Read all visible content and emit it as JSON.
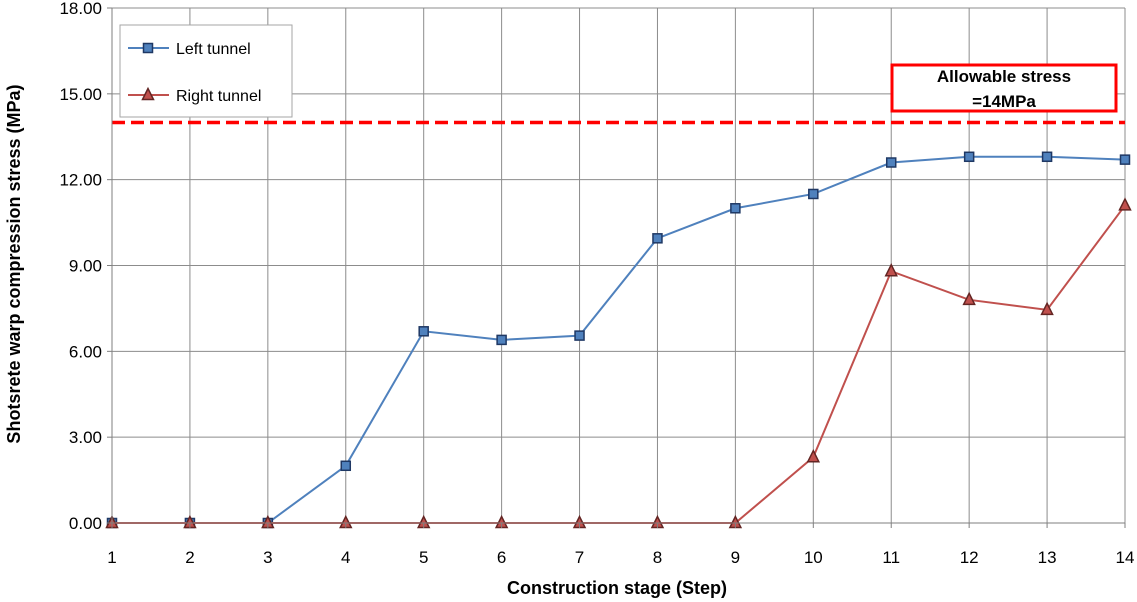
{
  "chart_data": {
    "type": "line",
    "xlabel": "Construction stage (Step)",
    "ylabel": "Shotsrete warp compression stress (MPa)",
    "x": [
      1,
      2,
      3,
      4,
      5,
      6,
      7,
      8,
      9,
      10,
      11,
      12,
      13,
      14
    ],
    "x_tick_labels": [
      "1",
      "2",
      "3",
      "4",
      "5",
      "6",
      "7",
      "8",
      "9",
      "10",
      "11",
      "12",
      "13",
      "14"
    ],
    "ylim": [
      0,
      18
    ],
    "y_ticks": [
      0,
      3,
      6,
      9,
      12,
      15,
      18
    ],
    "y_tick_labels": [
      "0.00",
      "3.00",
      "6.00",
      "9.00",
      "12.00",
      "15.00",
      "18.00"
    ],
    "grid": "vertical and horizontal",
    "legend_position": "top-left",
    "series": [
      {
        "name": "Left tunnel",
        "color": "#4f81bd",
        "marker": "square",
        "marker_fill": "#4f81bd",
        "marker_edge": "#1f3864",
        "values": [
          0,
          0,
          0,
          2.0,
          6.7,
          6.4,
          6.55,
          9.95,
          11.0,
          11.5,
          12.6,
          12.8,
          12.8,
          12.7
        ]
      },
      {
        "name": "Right tunnel",
        "color": "#c0504d",
        "marker": "triangle",
        "marker_fill": "#c0504d",
        "marker_edge": "#632523",
        "values": [
          0,
          0,
          0,
          0,
          0,
          0,
          0,
          0,
          0,
          2.3,
          8.8,
          7.8,
          7.45,
          11.1
        ]
      }
    ],
    "reference_line": {
      "value": 14,
      "color": "#ff0000",
      "style": "dashed"
    },
    "annotation": {
      "line1": "Allowable stress",
      "line2": "=14MPa",
      "border_color": "#ff0000"
    }
  }
}
